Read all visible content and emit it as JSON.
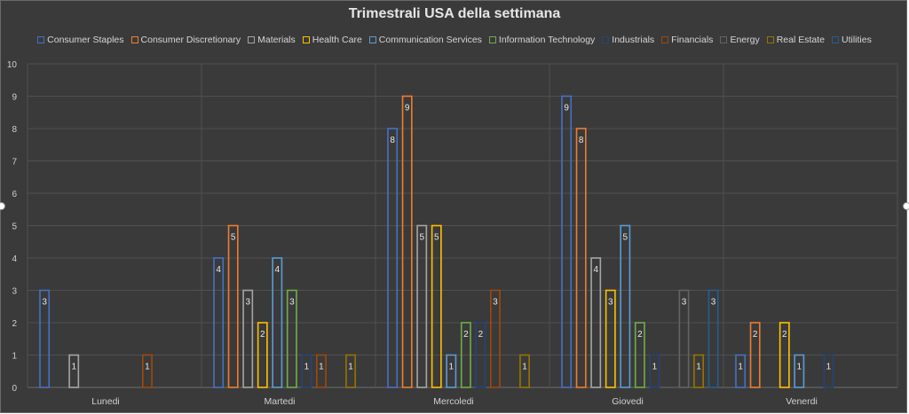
{
  "chart_data": {
    "type": "bar",
    "title": "Trimestrali USA della settimana",
    "categories": [
      "Lunedi",
      "Martedi",
      "Mercoledi",
      "Giovedi",
      "Venerdi"
    ],
    "ylim": [
      0,
      10
    ],
    "yticks": [
      0,
      1,
      2,
      3,
      4,
      5,
      6,
      7,
      8,
      9,
      10
    ],
    "grid": true,
    "legend_position": "top",
    "series": [
      {
        "name": "Consumer Staples",
        "color": "#4472c4",
        "values": [
          3,
          4,
          8,
          9,
          1
        ]
      },
      {
        "name": "Consumer Discretionary",
        "color": "#ed7d31",
        "values": [
          null,
          5,
          9,
          8,
          2
        ]
      },
      {
        "name": "Materials",
        "color": "#a5a5a5",
        "values": [
          1,
          3,
          5,
          4,
          null
        ]
      },
      {
        "name": "Health Care",
        "color": "#ffc000",
        "values": [
          null,
          2,
          5,
          3,
          2
        ]
      },
      {
        "name": "Communication Services",
        "color": "#5b9bd5",
        "values": [
          null,
          4,
          1,
          5,
          1
        ]
      },
      {
        "name": "Information Technology",
        "color": "#70ad47",
        "values": [
          null,
          3,
          2,
          2,
          null
        ]
      },
      {
        "name": "Industrials",
        "color": "#264478",
        "values": [
          null,
          1,
          2,
          1,
          1
        ]
      },
      {
        "name": "Financials",
        "color": "#9e480e",
        "values": [
          1,
          1,
          3,
          null,
          null
        ]
      },
      {
        "name": "Energy",
        "color": "#636363",
        "values": [
          null,
          null,
          null,
          3,
          null
        ]
      },
      {
        "name": "Real Estate",
        "color": "#997300",
        "values": [
          null,
          1,
          1,
          1,
          null
        ]
      },
      {
        "name": "Utilities",
        "color": "#255e91",
        "values": [
          null,
          null,
          null,
          3,
          null
        ]
      }
    ]
  }
}
